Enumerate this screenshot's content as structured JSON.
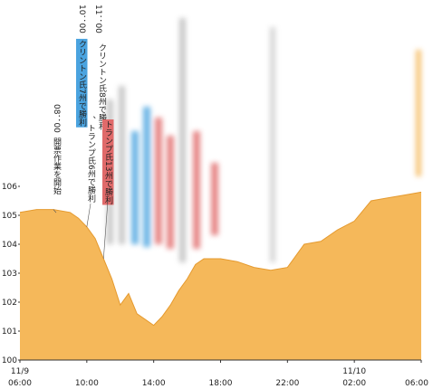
{
  "chart_data": {
    "type": "area",
    "color": "#f5b85a",
    "x": [
      6,
      7,
      8,
      9,
      9.5,
      10,
      10.5,
      11,
      11.5,
      12,
      12.5,
      13,
      13.5,
      14,
      14.5,
      15,
      15.5,
      16,
      16.5,
      17,
      18,
      19,
      20,
      21,
      22,
      22.5,
      23,
      24,
      25,
      26,
      27,
      28,
      29,
      30
    ],
    "values": [
      105.1,
      105.2,
      105.2,
      105.1,
      104.9,
      104.6,
      104.2,
      103.5,
      102.8,
      101.9,
      102.3,
      101.6,
      101.4,
      101.2,
      101.5,
      101.9,
      102.4,
      102.8,
      103.3,
      103.5,
      103.5,
      103.4,
      103.2,
      103.1,
      103.2,
      103.6,
      104.0,
      104.1,
      104.5,
      104.8,
      105.5,
      105.6,
      105.7,
      105.8
    ],
    "xlim": [
      6,
      30
    ],
    "ylim": [
      100,
      106
    ],
    "yticks": [
      100,
      101,
      102,
      103,
      104,
      105,
      106
    ],
    "xticks": [
      {
        "value": 6,
        "label": "06:00",
        "date": "11/9"
      },
      {
        "value": 10,
        "label": "10:00"
      },
      {
        "value": 14,
        "label": "14:00"
      },
      {
        "value": 18,
        "label": "18:00"
      },
      {
        "value": 22,
        "label": "22:00"
      },
      {
        "value": 26,
        "label": "02:00",
        "date": "11/10"
      },
      {
        "value": 30,
        "label": "06:00"
      }
    ],
    "annotations": [
      {
        "x": 8,
        "time": "08：00",
        "segments": [
          {
            "text": "開票作業を開始"
          }
        ]
      },
      {
        "x": 10,
        "time": "10：00",
        "segments": [
          {
            "text": "クリントン氏7州で勝利",
            "highlight": "#4aa3df"
          },
          {
            "text": "、トランプ氏6州で勝利"
          }
        ]
      },
      {
        "x": 11,
        "time": "11：00",
        "segments": [
          {
            "text": "クリントン氏8州で勝利、"
          },
          {
            "text": "トランプ氏13州で勝利",
            "highlight": "#e06a6a"
          }
        ]
      }
    ]
  }
}
